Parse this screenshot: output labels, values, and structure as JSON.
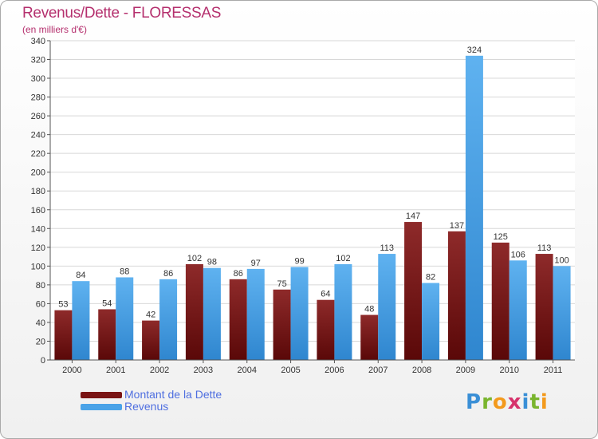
{
  "colors": {
    "dette": "#7a1414",
    "revenus": "#4aa3e8",
    "title": "#b5306e",
    "legend_text": "#4f6fe0"
  },
  "logo_text": "Proxiti",
  "chart_data": {
    "type": "bar",
    "title": "Revenus/Dette - FLORESSAS",
    "subtitle": "(en milliers d'€)",
    "categories": [
      "2000",
      "2001",
      "2002",
      "2003",
      "2004",
      "2005",
      "2006",
      "2007",
      "2008",
      "2009",
      "2010",
      "2011"
    ],
    "series": [
      {
        "name": "Montant de la Dette",
        "values": [
          53,
          54,
          42,
          102,
          86,
          75,
          64,
          48,
          147,
          137,
          125,
          113
        ]
      },
      {
        "name": "Revenus",
        "values": [
          84,
          88,
          86,
          98,
          97,
          99,
          102,
          113,
          82,
          324,
          106,
          100
        ]
      }
    ],
    "ylim": [
      0,
      340
    ],
    "yticks": [
      0,
      20,
      40,
      60,
      80,
      100,
      120,
      140,
      160,
      180,
      200,
      220,
      240,
      260,
      280,
      300,
      320,
      340
    ],
    "grid": true,
    "legend_position": "bottom-left"
  }
}
